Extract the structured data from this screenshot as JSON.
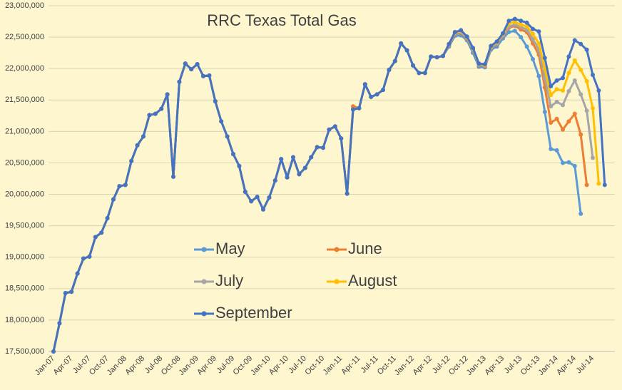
{
  "chart_data": {
    "type": "line",
    "title": "RRC Texas Total Gas",
    "categories": [
      "Jan-07",
      null,
      null,
      "Apr-07",
      null,
      null,
      "Jul-07",
      null,
      null,
      "Oct-07",
      null,
      null,
      "Jan-08",
      null,
      null,
      "Apr-08",
      null,
      null,
      "Jul-08",
      null,
      null,
      "Oct-08",
      null,
      null,
      "Jan-09",
      null,
      null,
      "Apr-09",
      null,
      null,
      "Jul-09",
      null,
      null,
      "Oct-09",
      null,
      null,
      "Jan-10",
      null,
      null,
      "Apr-10",
      null,
      null,
      "Jul-10",
      null,
      null,
      "Oct-10",
      null,
      null,
      "Jan-11",
      null,
      null,
      "Apr-11",
      null,
      null,
      "Jul-11",
      null,
      null,
      "Oct-11",
      null,
      null,
      "Jan-12",
      null,
      null,
      "Apr-12",
      null,
      null,
      "Jul-12",
      null,
      null,
      "Oct-12",
      null,
      null,
      "Jan-13",
      null,
      null,
      "Apr-13",
      null,
      null,
      "Jul-13",
      null,
      null,
      "Oct-13",
      null,
      null,
      "Jan-14",
      null,
      null,
      "Apr-14",
      null,
      null,
      "Jul-14",
      null,
      null
    ],
    "series": [
      {
        "name": "May",
        "color": "#5b9bd5",
        "values": [
          17500000,
          17950000,
          18430000,
          18450000,
          18740000,
          18980000,
          19010000,
          19320000,
          19390000,
          19620000,
          19920000,
          20130000,
          20150000,
          20530000,
          20780000,
          20920000,
          21260000,
          21280000,
          21360000,
          21590000,
          20280000,
          21790000,
          22080000,
          21990000,
          22070000,
          21880000,
          21890000,
          21480000,
          21160000,
          20920000,
          20640000,
          20450000,
          20040000,
          19890000,
          19960000,
          19760000,
          19950000,
          20220000,
          20560000,
          20270000,
          20590000,
          20320000,
          20420000,
          20590000,
          20750000,
          20740000,
          21030000,
          21080000,
          20890000,
          20010000,
          21350000,
          21370000,
          21750000,
          21550000,
          21590000,
          21660000,
          21980000,
          22120000,
          22400000,
          22290000,
          22050000,
          21930000,
          21930000,
          22190000,
          22180000,
          22200000,
          22350000,
          22520000,
          22530000,
          22450000,
          22250000,
          22030000,
          22020000,
          22300000,
          22350000,
          22480000,
          22580000,
          22600000,
          22500000,
          22350000,
          22150000,
          21880000,
          21310000,
          20720000,
          20700000,
          20500000,
          20510000,
          20450000,
          19690000,
          null,
          null,
          null,
          null
        ]
      },
      {
        "name": "June",
        "color": "#ed7d31",
        "values": [
          17500000,
          17950000,
          18430000,
          18450000,
          18740000,
          18980000,
          19010000,
          19320000,
          19390000,
          19620000,
          19920000,
          20130000,
          20150000,
          20530000,
          20780000,
          20920000,
          21260000,
          21280000,
          21360000,
          21590000,
          20280000,
          21790000,
          22080000,
          21990000,
          22070000,
          21880000,
          21890000,
          21480000,
          21160000,
          20920000,
          20640000,
          20450000,
          20040000,
          19890000,
          19960000,
          19760000,
          19950000,
          20220000,
          20560000,
          20270000,
          20590000,
          20320000,
          20420000,
          20590000,
          20750000,
          20740000,
          21030000,
          21080000,
          20890000,
          20010000,
          21400000,
          21370000,
          21750000,
          21550000,
          21590000,
          21660000,
          21980000,
          22120000,
          22400000,
          22290000,
          22050000,
          21930000,
          21930000,
          22190000,
          22180000,
          22200000,
          22370000,
          22550000,
          22570000,
          22480000,
          22300000,
          22060000,
          22040000,
          22330000,
          22390000,
          22520000,
          22650000,
          22680000,
          22620000,
          22580000,
          22400000,
          22220000,
          21700000,
          21140000,
          21200000,
          21030000,
          21160000,
          21280000,
          20950000,
          20150000,
          null,
          null,
          null
        ]
      },
      {
        "name": "July",
        "color": "#a5a5a5",
        "values": [
          17500000,
          17950000,
          18430000,
          18450000,
          18740000,
          18980000,
          19010000,
          19320000,
          19390000,
          19620000,
          19920000,
          20130000,
          20150000,
          20530000,
          20780000,
          20920000,
          21260000,
          21280000,
          21360000,
          21590000,
          20280000,
          21790000,
          22080000,
          21990000,
          22070000,
          21880000,
          21890000,
          21480000,
          21160000,
          20920000,
          20640000,
          20450000,
          20040000,
          19890000,
          19960000,
          19760000,
          19950000,
          20220000,
          20560000,
          20270000,
          20590000,
          20320000,
          20420000,
          20590000,
          20750000,
          20740000,
          21030000,
          21080000,
          20890000,
          20010000,
          21350000,
          21370000,
          21750000,
          21550000,
          21590000,
          21660000,
          21980000,
          22120000,
          22400000,
          22290000,
          22050000,
          21930000,
          21930000,
          22190000,
          22180000,
          22200000,
          22380000,
          22560000,
          22580000,
          22490000,
          22310000,
          22070000,
          22050000,
          22340000,
          22400000,
          22530000,
          22670000,
          22700000,
          22660000,
          22620000,
          22470000,
          22300000,
          21850000,
          21400000,
          21470000,
          21420000,
          21640000,
          21810000,
          21590000,
          21330000,
          20580000,
          null,
          null
        ]
      },
      {
        "name": "August",
        "color": "#ffc000",
        "values": [
          17500000,
          17950000,
          18430000,
          18450000,
          18740000,
          18980000,
          19010000,
          19320000,
          19390000,
          19620000,
          19920000,
          20130000,
          20150000,
          20530000,
          20780000,
          20920000,
          21260000,
          21280000,
          21360000,
          21590000,
          20280000,
          21790000,
          22080000,
          21990000,
          22070000,
          21880000,
          21890000,
          21480000,
          21160000,
          20920000,
          20640000,
          20450000,
          20040000,
          19890000,
          19960000,
          19760000,
          19950000,
          20220000,
          20560000,
          20270000,
          20590000,
          20320000,
          20420000,
          20590000,
          20750000,
          20740000,
          21030000,
          21080000,
          20890000,
          20010000,
          21350000,
          21370000,
          21750000,
          21550000,
          21590000,
          21660000,
          21980000,
          22120000,
          22400000,
          22290000,
          22050000,
          21930000,
          21930000,
          22190000,
          22180000,
          22200000,
          22390000,
          22570000,
          22600000,
          22500000,
          22320000,
          22080000,
          22060000,
          22350000,
          22420000,
          22550000,
          22720000,
          22740000,
          22700000,
          22670000,
          22550000,
          22400000,
          22000000,
          21580000,
          21670000,
          21650000,
          21930000,
          22130000,
          21980000,
          21800000,
          21370000,
          20170000,
          null
        ]
      },
      {
        "name": "September",
        "color": "#4472c4",
        "values": [
          17500000,
          17950000,
          18430000,
          18450000,
          18740000,
          18980000,
          19010000,
          19320000,
          19390000,
          19620000,
          19920000,
          20130000,
          20150000,
          20530000,
          20780000,
          20920000,
          21260000,
          21280000,
          21360000,
          21590000,
          20280000,
          21790000,
          22080000,
          21990000,
          22070000,
          21880000,
          21890000,
          21480000,
          21160000,
          20920000,
          20640000,
          20450000,
          20040000,
          19890000,
          19960000,
          19760000,
          19950000,
          20220000,
          20560000,
          20270000,
          20590000,
          20320000,
          20420000,
          20590000,
          20750000,
          20740000,
          21030000,
          21080000,
          20890000,
          20010000,
          21350000,
          21370000,
          21750000,
          21550000,
          21590000,
          21660000,
          21980000,
          22120000,
          22400000,
          22290000,
          22050000,
          21930000,
          21930000,
          22190000,
          22180000,
          22200000,
          22390000,
          22580000,
          22610000,
          22510000,
          22330000,
          22080000,
          22070000,
          22360000,
          22430000,
          22560000,
          22760000,
          22790000,
          22760000,
          22730000,
          22630000,
          22590000,
          22170000,
          21720000,
          21810000,
          21850000,
          22190000,
          22450000,
          22390000,
          22300000,
          21900000,
          21650000,
          20150000
        ]
      }
    ],
    "ylim": [
      17500000,
      23000000
    ],
    "yticks": [
      {
        "value": 17500000,
        "label": "17,500,000"
      },
      {
        "value": 18000000,
        "label": "18,000,000"
      },
      {
        "value": 18500000,
        "label": "18,500,000"
      },
      {
        "value": 19000000,
        "label": "19,000,000"
      },
      {
        "value": 19500000,
        "label": "19,500,000"
      },
      {
        "value": 20000000,
        "label": "20,000,000"
      },
      {
        "value": 20500000,
        "label": "20,500,000"
      },
      {
        "value": 21000000,
        "label": "21,000,000"
      },
      {
        "value": 21500000,
        "label": "21,500,000"
      },
      {
        "value": 22000000,
        "label": "22,000,000"
      },
      {
        "value": 22500000,
        "label": "22,500,000"
      },
      {
        "value": 23000000,
        "label": "23,000,000"
      }
    ],
    "grid": true,
    "markers": true,
    "legend": "center"
  }
}
